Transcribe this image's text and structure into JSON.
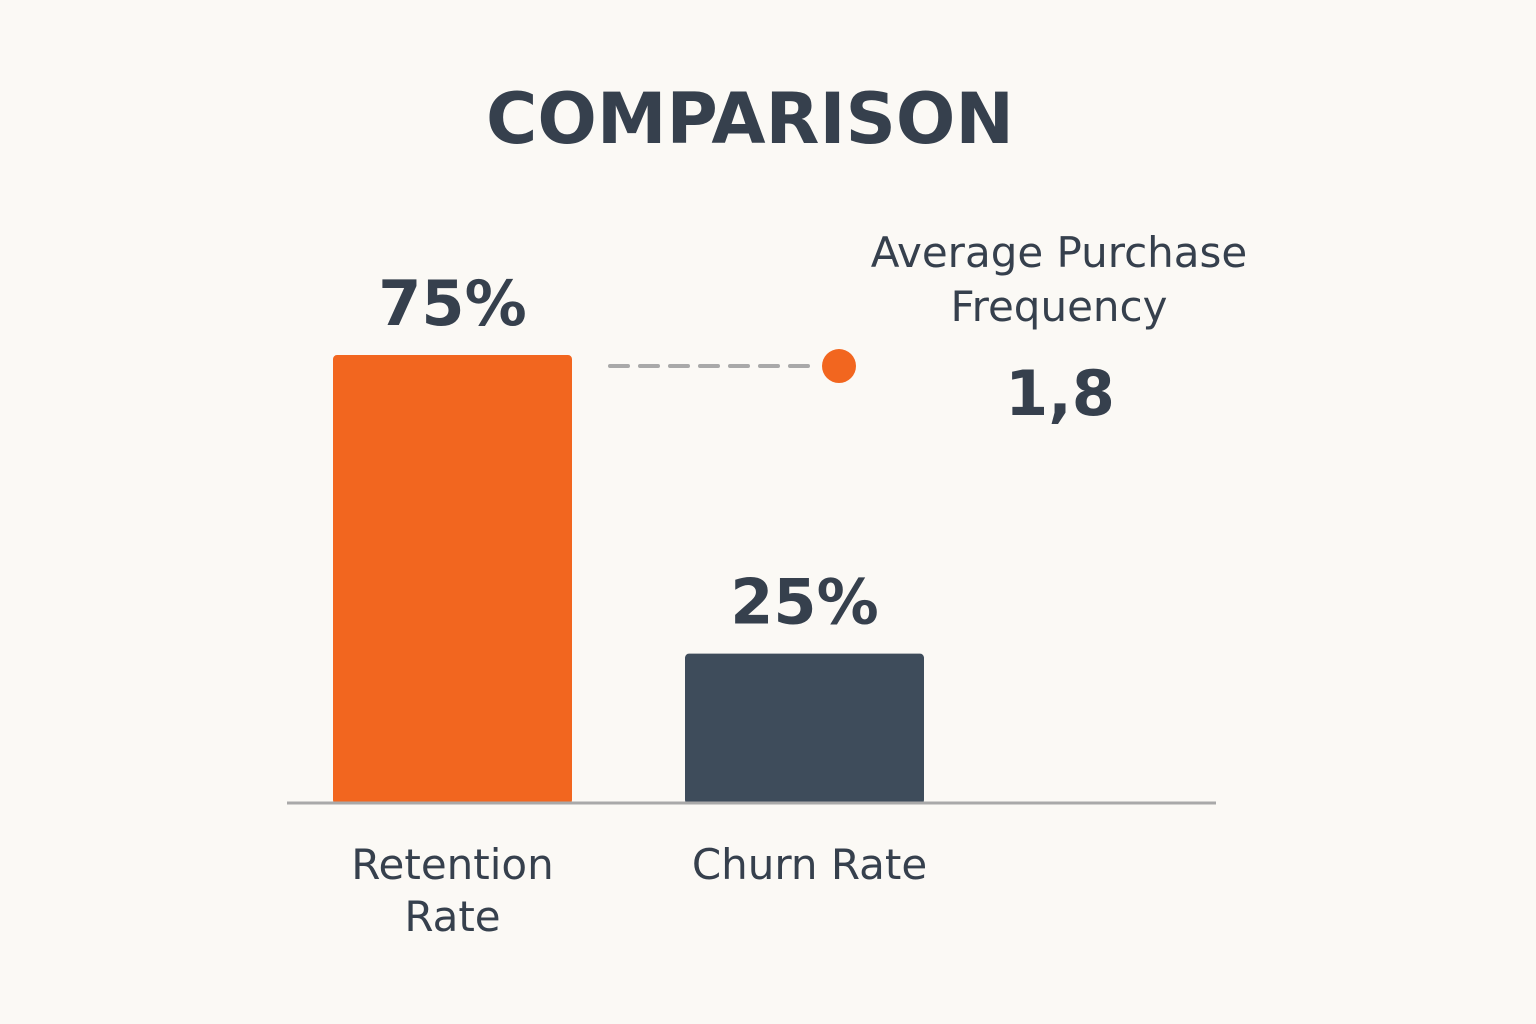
{
  "chart_data": {
    "type": "bar",
    "title": "COMPARISON",
    "categories": [
      "Retention Rate",
      "Churn Rate"
    ],
    "category_lines": [
      [
        "Retention",
        "Rate"
      ],
      [
        "Churn Rate"
      ]
    ],
    "values": [
      75,
      25
    ],
    "value_labels": [
      "75%",
      "25%"
    ],
    "ylim": [
      0,
      100
    ],
    "colors": [
      "#f2661f",
      "#3e4c5b"
    ],
    "grid": false,
    "annotation": {
      "label_lines": [
        "Average Purchase",
        "Frequency"
      ],
      "value": "1,8",
      "marker_color": "#f2661f"
    }
  }
}
